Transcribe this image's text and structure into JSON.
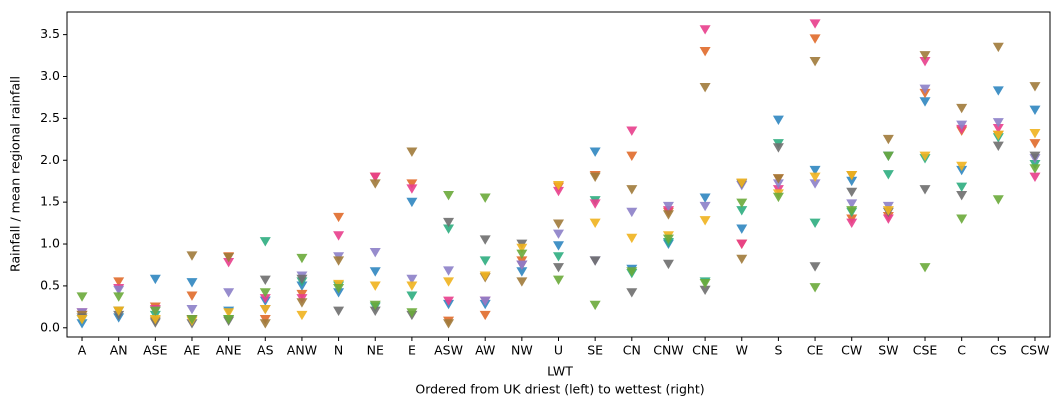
{
  "chart_data": {
    "type": "scatter",
    "marker": "triangle-down",
    "ylabel": "Rainfall / mean regional rainfall",
    "xlabel": [
      "LWT",
      "Ordered from UK driest (left) to wettest (right)"
    ],
    "categories": [
      "A",
      "AN",
      "ASE",
      "AE",
      "ANE",
      "AS",
      "ANW",
      "N",
      "NE",
      "E",
      "ASW",
      "AW",
      "NW",
      "U",
      "SE",
      "CN",
      "CNW",
      "CNE",
      "W",
      "S",
      "CE",
      "CW",
      "SW",
      "CSE",
      "C",
      "CS",
      "CSW"
    ],
    "ylim": [
      -0.11,
      3.77
    ],
    "yticks": [
      {
        "value": 0,
        "label": "0.0"
      },
      0.5,
      {
        "value": 1,
        "label": "1.0"
      },
      1.5,
      {
        "value": 2,
        "label": "2.0"
      },
      2.5,
      {
        "value": 3,
        "label": "3.0"
      },
      3.5
    ],
    "series": [
      {
        "color": "#2f86c0",
        "values": [
          0.05,
          0.12,
          0.58,
          0.54,
          0.2,
          0.32,
          0.5,
          0.42,
          0.67,
          1.5,
          0.28,
          0.28,
          0.67,
          0.98,
          2.1,
          0.7,
          1.0,
          1.55,
          1.18,
          2.48,
          1.88,
          1.75,
          2.05,
          2.7,
          1.88,
          2.83,
          2.6
        ]
      },
      {
        "color": "#e06a2a",
        "values": [
          0.15,
          0.55,
          0.25,
          0.38,
          0.85,
          0.1,
          0.4,
          1.32,
          1.8,
          1.72,
          0.08,
          0.15,
          0.8,
          1.68,
          1.82,
          2.05,
          1.38,
          3.3,
          1.0,
          1.78,
          3.45,
          1.3,
          1.33,
          2.8,
          2.35,
          2.3,
          2.2
        ]
      },
      {
        "color": "#2ead80",
        "values": [
          0.1,
          0.2,
          0.15,
          0.1,
          0.1,
          1.03,
          0.55,
          0.5,
          0.25,
          0.38,
          1.18,
          0.8,
          0.75,
          0.85,
          1.52,
          0.65,
          1.02,
          0.55,
          1.4,
          2.2,
          1.25,
          1.38,
          1.83,
          2.02,
          1.68,
          2.27,
          1.95
        ]
      },
      {
        "color": "#e83e8c",
        "values": [
          0.18,
          0.47,
          0.22,
          0.1,
          0.78,
          0.35,
          0.35,
          1.1,
          1.8,
          1.66,
          0.32,
          0.32,
          0.75,
          1.63,
          1.48,
          2.35,
          1.4,
          3.56,
          1.0,
          1.65,
          3.63,
          1.25,
          1.3,
          3.18,
          2.37,
          2.38,
          1.8
        ]
      },
      {
        "color": "#8c80c8",
        "values": [
          0.18,
          0.45,
          0.2,
          0.22,
          0.42,
          0.22,
          0.62,
          0.85,
          0.9,
          0.58,
          0.68,
          0.32,
          0.75,
          1.12,
          0.8,
          1.38,
          1.45,
          1.45,
          1.7,
          1.72,
          1.72,
          1.48,
          1.45,
          2.85,
          2.42,
          2.45,
          2.02
        ]
      },
      {
        "color": "#a07a3a",
        "values": [
          0.15,
          0.2,
          0.08,
          0.86,
          0.84,
          0.05,
          0.3,
          0.8,
          1.72,
          2.1,
          0.05,
          0.6,
          0.55,
          1.24,
          1.8,
          1.65,
          1.35,
          2.87,
          0.82,
          1.78,
          3.18,
          1.82,
          2.25,
          3.25,
          2.62,
          3.35,
          2.88
        ]
      },
      {
        "color": "#6e6e6e",
        "values": [
          0.12,
          0.15,
          0.06,
          0.05,
          0.08,
          0.57,
          0.58,
          0.2,
          0.2,
          0.15,
          1.26,
          1.05,
          1.0,
          0.72,
          0.8,
          0.42,
          0.76,
          0.45,
          1.72,
          2.15,
          0.73,
          1.62,
          1.38,
          1.65,
          1.58,
          2.17,
          2.05
        ]
      },
      {
        "color": "#f0b21e",
        "values": [
          0.1,
          0.2,
          0.1,
          0.08,
          0.18,
          0.22,
          0.15,
          0.52,
          0.5,
          0.5,
          0.55,
          0.62,
          0.95,
          1.7,
          1.25,
          1.07,
          1.1,
          1.28,
          1.73,
          1.6,
          1.8,
          1.82,
          1.4,
          2.05,
          1.93,
          2.3,
          2.32
        ]
      },
      {
        "color": "#6aaa3a",
        "values": [
          0.37,
          0.37,
          0.2,
          0.1,
          0.1,
          0.42,
          0.83,
          0.47,
          0.27,
          0.18,
          1.58,
          1.55,
          0.88,
          0.57,
          0.27,
          0.67,
          1.06,
          0.53,
          1.49,
          1.56,
          0.48,
          1.4,
          2.05,
          0.72,
          1.3,
          1.53,
          1.9
        ]
      }
    ]
  }
}
